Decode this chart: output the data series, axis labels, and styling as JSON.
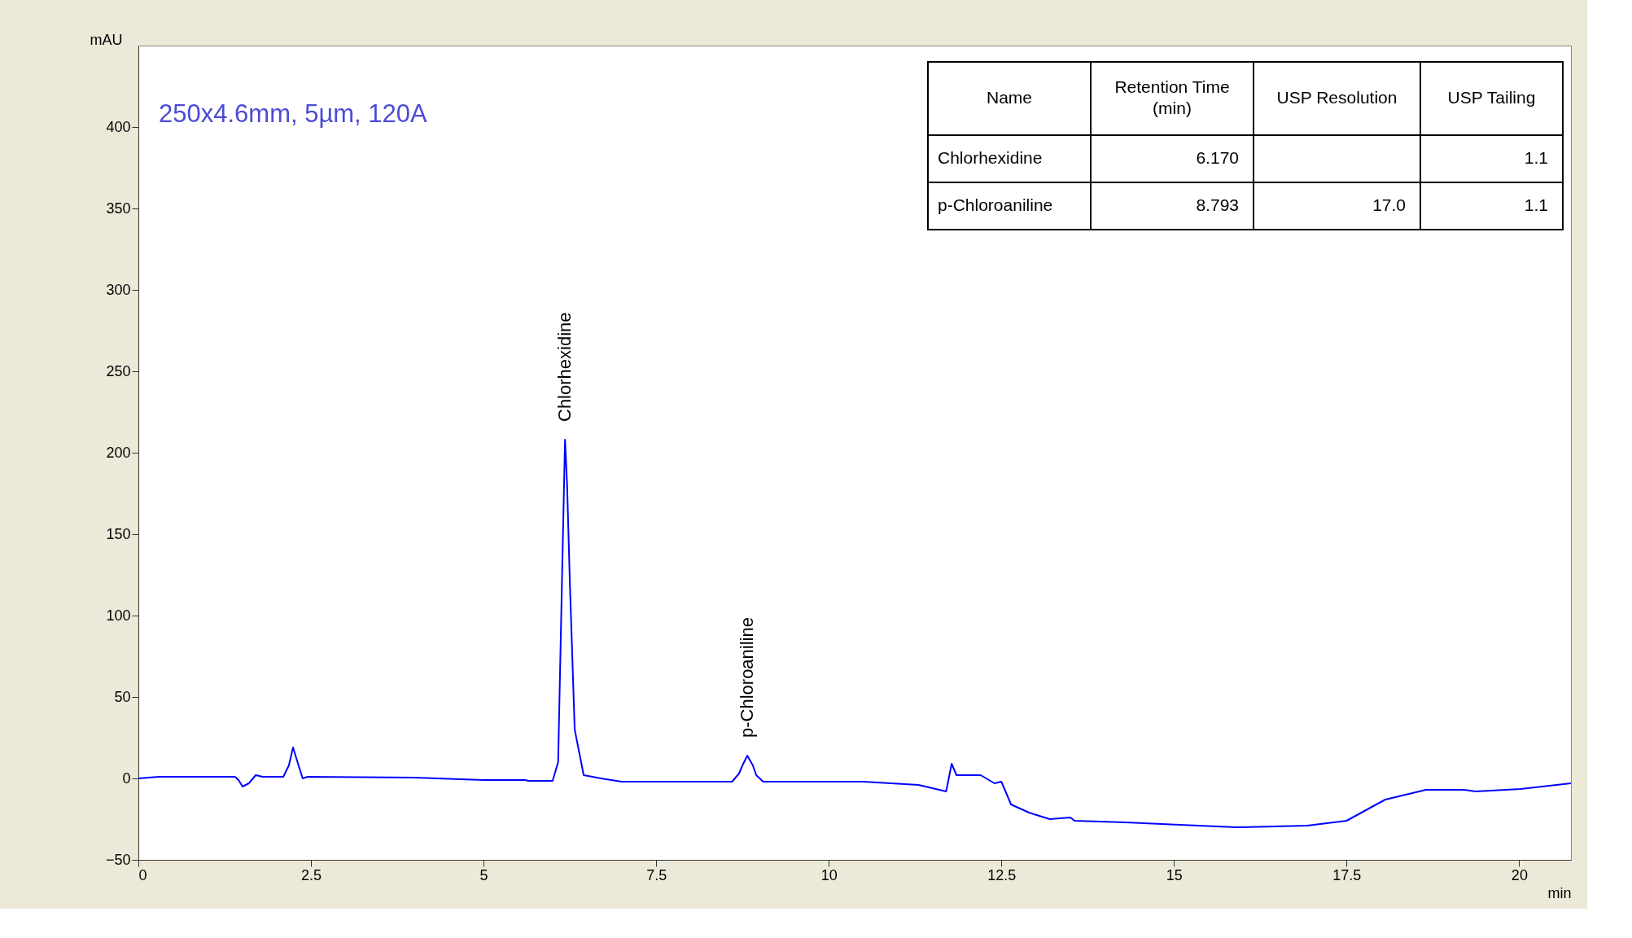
{
  "chart_data": {
    "type": "line",
    "subtitle": "250x4.6mm, 5µm, 120A",
    "xlabel": "min",
    "ylabel": "mAU",
    "xlim": [
      0,
      20.75
    ],
    "ylim": [
      -50,
      450
    ],
    "xticks": [
      0,
      2.5,
      5,
      7.5,
      10,
      12.5,
      15,
      17.5,
      20
    ],
    "yticks": [
      -50,
      0,
      50,
      100,
      150,
      200,
      250,
      300,
      350,
      400
    ],
    "grid": false,
    "marker": "none",
    "line_style": "solid",
    "series": [
      {
        "color": "#0000ff",
        "x": [
          0,
          0.3,
          1.4,
          1.45,
          1.51,
          1.6,
          1.7,
          1.8,
          2.1,
          2.18,
          2.24,
          2.32,
          2.38,
          2.45,
          4,
          5,
          5.6,
          5.65,
          6.0,
          6.08,
          6.12,
          6.15,
          6.18,
          6.21,
          6.25,
          6.32,
          6.45,
          6.7,
          7,
          8.6,
          8.7,
          8.75,
          8.82,
          8.9,
          8.95,
          9.05,
          10.5,
          11.3,
          11.7,
          11.78,
          11.85,
          12.2,
          12.4,
          12.5,
          12.64,
          12.9,
          13.2,
          13.5,
          13.56,
          14.3,
          14.82,
          15.9,
          16.93,
          17.5,
          18.06,
          18.65,
          19.2,
          19.37,
          20.02,
          20.75
        ],
        "values": [
          0,
          1,
          1,
          -1,
          -5,
          -3,
          2,
          1,
          1,
          8,
          19,
          8,
          0,
          1,
          0.5,
          -1,
          -1,
          -1.5,
          -1.5,
          10,
          90,
          150,
          208,
          180,
          120,
          30,
          2,
          0,
          -2,
          -2,
          3,
          8,
          14,
          8,
          2,
          -2,
          -2,
          -4,
          -8,
          9,
          2,
          2,
          -3,
          -2,
          -16,
          -21,
          -25,
          -24,
          -26,
          -27,
          -28,
          -30,
          -29,
          -26,
          -13,
          -7,
          -7,
          -8,
          -6.5,
          -3
        ]
      }
    ],
    "annotations": [
      {
        "text": "Chlorhexidine",
        "x": 6.18,
        "y": 208
      },
      {
        "text": "p-Chloroaniline",
        "x": 8.82,
        "y": 14
      },
      "Name\tRetention Time\n(min)\tUSP Resolution\tUSP Tailing",
      "Chlorhexidine\t6.170\t\t1.1",
      "p-Chloroaniline\t8.793\t17.0\t1.1"
    ]
  }
}
